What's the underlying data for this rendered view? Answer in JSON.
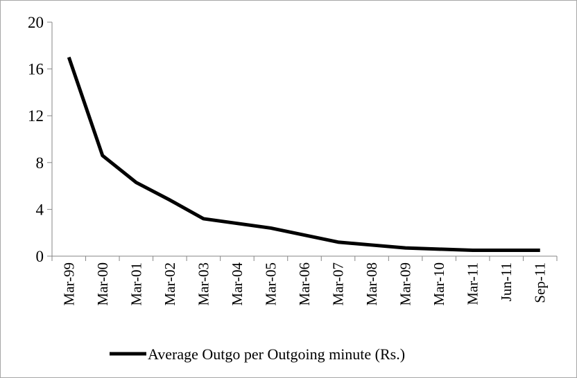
{
  "chart_data": {
    "type": "line",
    "categories": [
      "Mar-99",
      "Mar-00",
      "Mar-01",
      "Mar-02",
      "Mar-03",
      "Mar-04",
      "Mar-05",
      "Mar-06",
      "Mar-07",
      "Mar-08",
      "Mar-09",
      "Mar-10",
      "Mar-11",
      "Jun-11",
      "Sep-11"
    ],
    "series": [
      {
        "name": "Average Outgo per Outgoing minute (Rs.)",
        "color": "#000000",
        "values": [
          17,
          8.6,
          6.3,
          4.8,
          3.2,
          2.8,
          2.4,
          1.8,
          1.2,
          0.95,
          0.7,
          0.6,
          0.5,
          0.5,
          0.5
        ]
      }
    ],
    "ylim": [
      0,
      20
    ],
    "yticks": [
      0,
      4,
      8,
      12,
      16,
      20
    ],
    "grid": false,
    "legend": "bottom"
  }
}
